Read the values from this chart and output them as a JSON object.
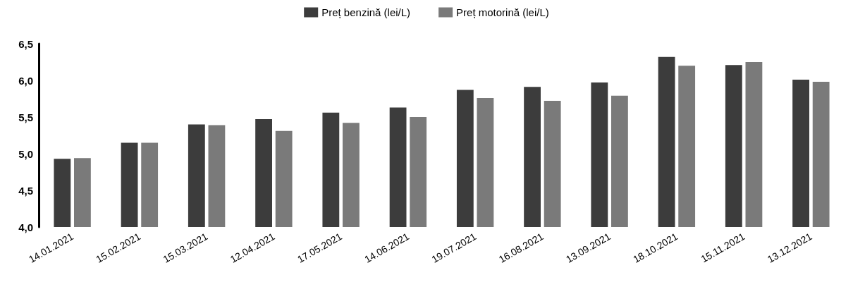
{
  "chart_data": {
    "type": "bar",
    "categories": [
      "14.01.2021",
      "15.02.2021",
      "15.03.2021",
      "12.04.2021",
      "17.05.2021",
      "14.06.2021",
      "19.07.2021",
      "16.08.2021",
      "13.09.2021",
      "18.10.2021",
      "15.11.2021",
      "13.12.2021"
    ],
    "series": [
      {
        "name": "Preț benzină (lei/L)",
        "color": "#3c3c3c",
        "values": [
          4.93,
          5.15,
          5.4,
          5.47,
          5.56,
          5.63,
          5.87,
          5.91,
          5.97,
          6.32,
          6.21,
          6.01
        ]
      },
      {
        "name": "Preț motorină (lei/L)",
        "color": "#7a7a7a",
        "values": [
          4.94,
          5.15,
          5.39,
          5.31,
          5.42,
          5.5,
          5.76,
          5.72,
          5.79,
          6.2,
          6.25,
          5.98
        ]
      }
    ],
    "ylim": [
      4.0,
      6.5
    ],
    "yticks": [
      {
        "value": 4.0,
        "label": "4,0"
      },
      {
        "value": 4.5,
        "label": "4,5"
      },
      {
        "value": 5.0,
        "label": "5,0"
      },
      {
        "value": 5.5,
        "label": "5,5"
      },
      {
        "value": 6.0,
        "label": "6,0"
      },
      {
        "value": 6.5,
        "label": "6,5"
      }
    ],
    "grid": false,
    "legend": "top"
  }
}
